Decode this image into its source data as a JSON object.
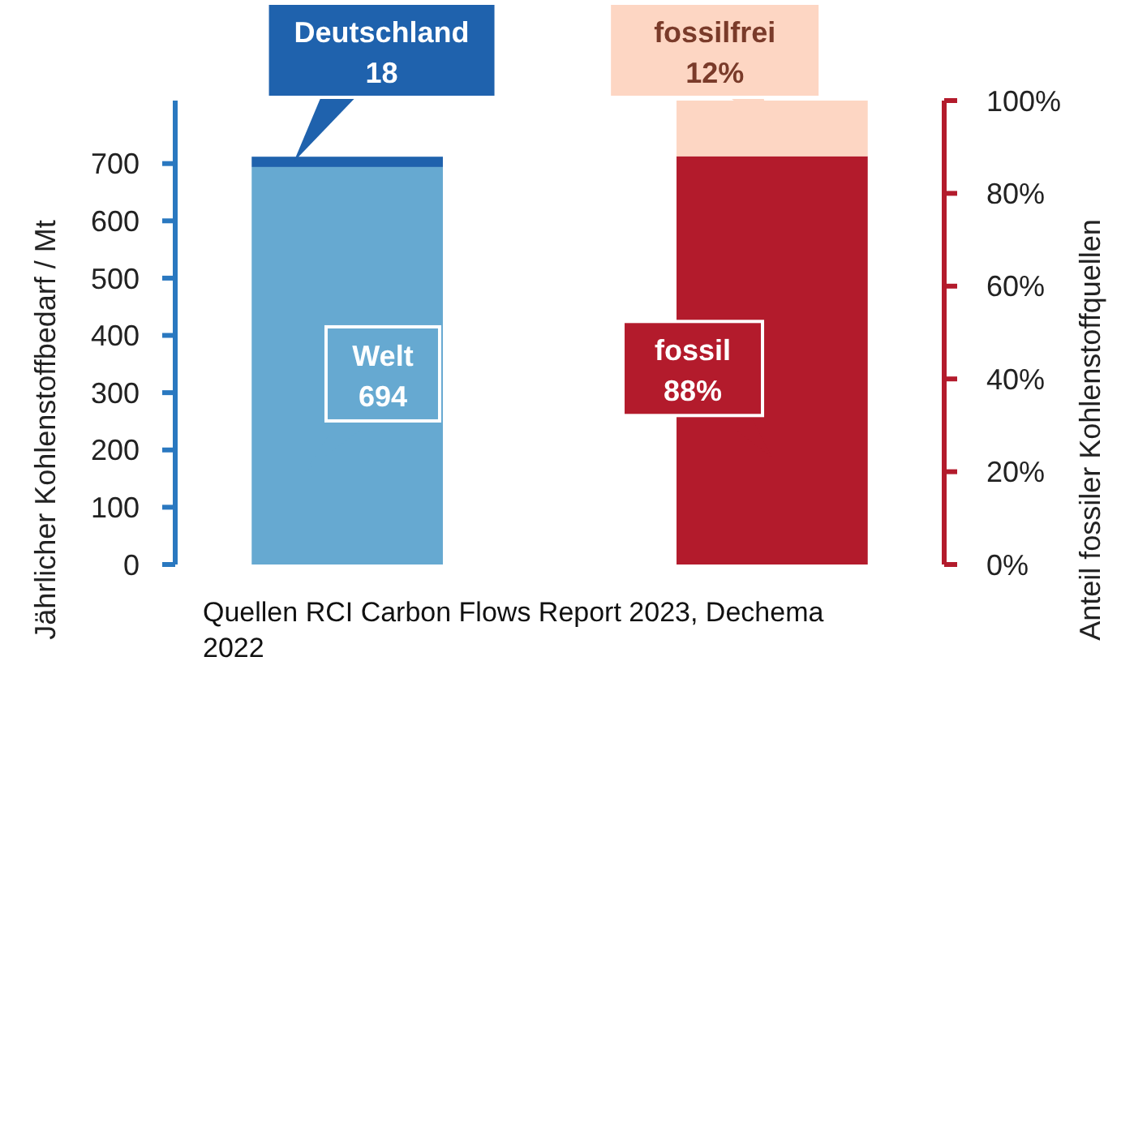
{
  "chart_data": {
    "type": "bar",
    "stacked": true,
    "categories": [
      null,
      null
    ],
    "series": [
      {
        "name": "Welt",
        "color": "#66a9d1",
        "values": [
          694,
          null
        ],
        "value_labels": [
          "694",
          null
        ],
        "axis": "y"
      },
      {
        "name": "Deutschland",
        "color": "#1f62ad",
        "values": [
          18,
          null
        ],
        "value_labels": [
          "18",
          null
        ],
        "axis": "y"
      },
      {
        "name": "fossil",
        "color": "#b31b2c",
        "values": [
          null,
          88
        ],
        "value_labels": [
          null,
          "88%"
        ],
        "axis": "y2"
      },
      {
        "name": "fossilfrei",
        "color": "#fdd6c3",
        "values": [
          null,
          12
        ],
        "value_labels": [
          null,
          "12%"
        ],
        "axis": "y2"
      }
    ],
    "ylabel": "Jährlicher Kohlenstoffbedarf / Mt",
    "y2label": "Anteil fossiler Kohlenstoffquellen",
    "ylim": [
      0,
      810
    ],
    "yticks": [
      0,
      100,
      200,
      300,
      400,
      500,
      600,
      700
    ],
    "y2lim": [
      0,
      100
    ],
    "y2ticks": [
      {
        "value": 0,
        "label": "0%"
      },
      {
        "value": 20,
        "label": "20%"
      },
      {
        "value": 40,
        "label": "40%"
      },
      {
        "value": 60,
        "label": "60%"
      },
      {
        "value": 80,
        "label": "80%"
      },
      {
        "value": 100,
        "label": "100%"
      }
    ],
    "grid": false,
    "annotations": [
      "Quellen RCI Carbon Flows Report 2023, Dechema 2022"
    ]
  }
}
